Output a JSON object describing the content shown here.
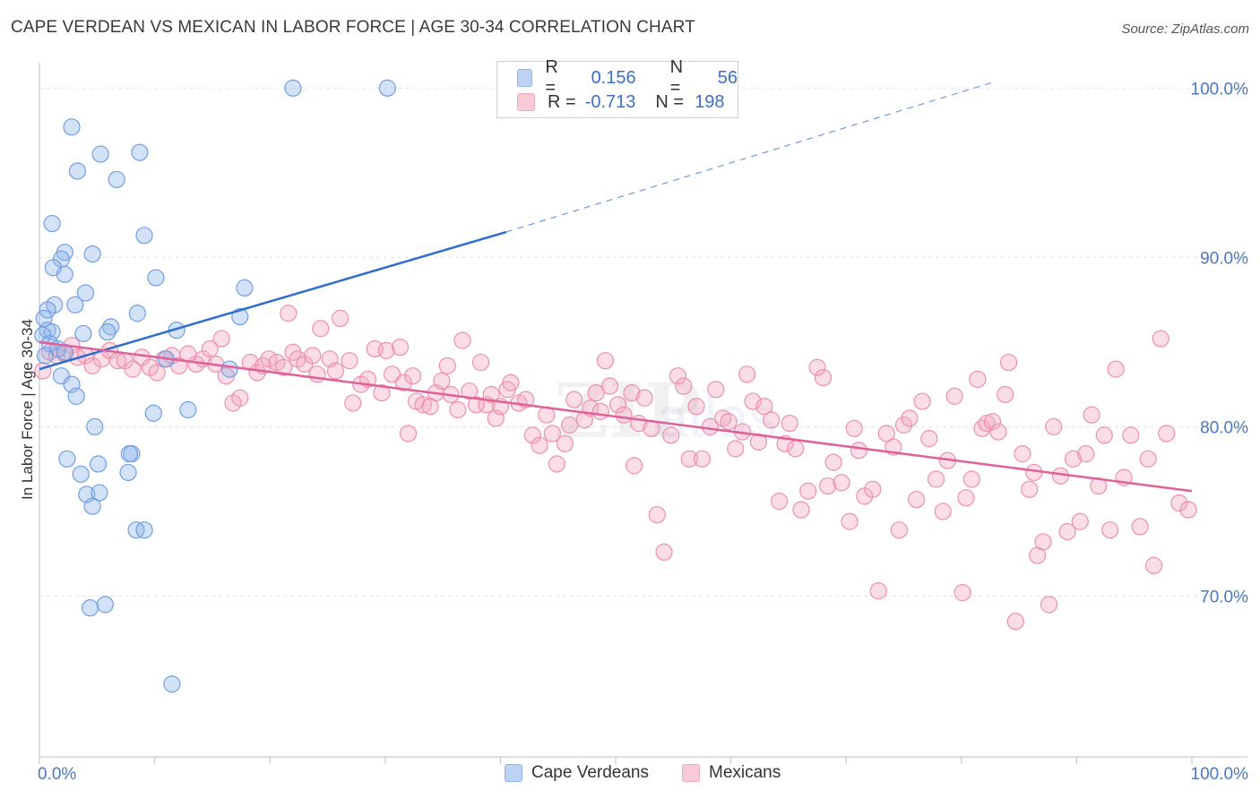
{
  "title": "CAPE VERDEAN VS MEXICAN IN LABOR FORCE | AGE 30-34 CORRELATION CHART",
  "source": "Source: ZipAtlas.com",
  "legend": {
    "rows": [
      {
        "r_label": "R =",
        "r_value": "0.156",
        "n_label": "N =",
        "n_value": "56",
        "color": "#8fb4ea"
      },
      {
        "r_label": "R =",
        "r_value": "-0.713",
        "n_label": "N =",
        "n_value": "198",
        "color": "#f3a6be"
      }
    ]
  },
  "bottom_legend": [
    {
      "label": "Cape Verdeans",
      "color": "#8fb4ea"
    },
    {
      "label": "Mexicans",
      "color": "#f3a6be"
    }
  ],
  "chart_data": {
    "type": "scatter",
    "ylabel": "In Labor Force | Age 30-34",
    "x_tick_labels": [
      "0.0%",
      "100.0%"
    ],
    "y_tick_labels": [
      "100.0%",
      "90.0%",
      "80.0%",
      "70.0%"
    ],
    "y_tick_values": [
      100,
      90,
      80,
      70
    ],
    "xlim": [
      0,
      100
    ],
    "ylim": [
      60.5,
      101.5
    ],
    "grid": true,
    "series": [
      {
        "name": "Cape Verdeans",
        "color": "#8fb4ea",
        "stroke": "#6f9fe3",
        "trend": {
          "x0": 0,
          "y0": 83.4,
          "x1": 40.5,
          "y1": 91.5,
          "dash_x1": 83,
          "dash_y1": 100.4,
          "color": "#2f6fcc"
        },
        "points": [
          [
            22,
            100
          ],
          [
            30.2,
            100
          ],
          [
            2.8,
            97.7
          ],
          [
            5.3,
            96.1
          ],
          [
            8.7,
            96.2
          ],
          [
            6.7,
            94.6
          ],
          [
            3.3,
            95.1
          ],
          [
            1.1,
            92
          ],
          [
            9.1,
            91.3
          ],
          [
            2.2,
            90.3
          ],
          [
            4.6,
            90.2
          ],
          [
            1.9,
            89.9
          ],
          [
            1.2,
            89.4
          ],
          [
            2.2,
            89
          ],
          [
            10.1,
            88.8
          ],
          [
            17.8,
            88.2
          ],
          [
            4,
            87.9
          ],
          [
            1.3,
            87.2
          ],
          [
            3.1,
            87.2
          ],
          [
            0.7,
            86.9
          ],
          [
            8.5,
            86.7
          ],
          [
            17.4,
            86.5
          ],
          [
            0.4,
            86.4
          ],
          [
            6.2,
            85.9
          ],
          [
            11.9,
            85.7
          ],
          [
            0.7,
            85.7
          ],
          [
            1.1,
            85.6
          ],
          [
            3.8,
            85.5
          ],
          [
            5.9,
            85.6
          ],
          [
            0.3,
            85.4
          ],
          [
            0.9,
            84.9
          ],
          [
            1.6,
            84.6
          ],
          [
            2.2,
            84.4
          ],
          [
            0.5,
            84.2
          ],
          [
            11,
            84
          ],
          [
            16.5,
            83.4
          ],
          [
            1.9,
            83
          ],
          [
            2.8,
            82.5
          ],
          [
            3.2,
            81.8
          ],
          [
            12.9,
            81
          ],
          [
            9.9,
            80.8
          ],
          [
            4.8,
            80
          ],
          [
            8.0,
            78.4
          ],
          [
            7.8,
            78.4
          ],
          [
            2.4,
            78.1
          ],
          [
            5.1,
            77.8
          ],
          [
            3.6,
            77.2
          ],
          [
            7.7,
            77.3
          ],
          [
            4.1,
            76
          ],
          [
            5.2,
            76.1
          ],
          [
            4.6,
            75.3
          ],
          [
            8.4,
            73.9
          ],
          [
            9.1,
            73.9
          ],
          [
            5.7,
            69.5
          ],
          [
            4.4,
            69.3
          ],
          [
            11.5,
            64.8
          ]
        ]
      },
      {
        "name": "Mexicans",
        "color": "#f3a6be",
        "stroke": "#ec90ae",
        "trend": {
          "x0": 0,
          "y0": 85.0,
          "x1": 100,
          "y1": 76.2,
          "color": "#e0609a"
        },
        "points": [
          [
            0.3,
            83.3
          ],
          [
            0.9,
            84.4
          ],
          [
            1.5,
            84.2
          ],
          [
            2.2,
            84.3
          ],
          [
            2.8,
            84.8
          ],
          [
            3.3,
            84.1
          ],
          [
            4.0,
            84.2
          ],
          [
            4.6,
            83.6
          ],
          [
            5.4,
            84.0
          ],
          [
            6.1,
            84.5
          ],
          [
            6.8,
            83.9
          ],
          [
            7.4,
            83.9
          ],
          [
            8.1,
            83.4
          ],
          [
            8.9,
            84.1
          ],
          [
            9.6,
            83.5
          ],
          [
            10.2,
            83.2
          ],
          [
            10.8,
            84.0
          ],
          [
            11.5,
            84.2
          ],
          [
            12.1,
            83.6
          ],
          [
            12.9,
            84.3
          ],
          [
            13.6,
            83.7
          ],
          [
            14.2,
            84.0
          ],
          [
            14.8,
            84.6
          ],
          [
            15.3,
            83.7
          ],
          [
            15.8,
            85.2
          ],
          [
            16.2,
            83.0
          ],
          [
            16.8,
            81.4
          ],
          [
            17.4,
            81.7
          ],
          [
            18.3,
            83.8
          ],
          [
            18.9,
            83.2
          ],
          [
            19.4,
            83.6
          ],
          [
            19.9,
            84.0
          ],
          [
            20.6,
            83.8
          ],
          [
            21.2,
            83.5
          ],
          [
            21.6,
            86.7
          ],
          [
            22.0,
            84.4
          ],
          [
            22.4,
            84.0
          ],
          [
            23.0,
            83.7
          ],
          [
            23.7,
            84.2
          ],
          [
            24.1,
            83.1
          ],
          [
            24.4,
            85.8
          ],
          [
            25.2,
            84.0
          ],
          [
            25.7,
            83.3
          ],
          [
            26.1,
            86.4
          ],
          [
            26.9,
            83.9
          ],
          [
            27.2,
            81.4
          ],
          [
            27.9,
            82.5
          ],
          [
            28.5,
            82.8
          ],
          [
            29.1,
            84.6
          ],
          [
            29.7,
            82.0
          ],
          [
            30.1,
            84.5
          ],
          [
            30.6,
            83.1
          ],
          [
            31.3,
            84.7
          ],
          [
            31.6,
            82.6
          ],
          [
            32.0,
            79.6
          ],
          [
            32.4,
            83.0
          ],
          [
            32.7,
            81.5
          ],
          [
            33.3,
            81.3
          ],
          [
            33.9,
            81.2
          ],
          [
            34.4,
            82.0
          ],
          [
            34.9,
            82.7
          ],
          [
            35.4,
            83.6
          ],
          [
            35.7,
            81.9
          ],
          [
            36.3,
            81.0
          ],
          [
            36.7,
            85.1
          ],
          [
            37.3,
            82.1
          ],
          [
            37.9,
            81.3
          ],
          [
            38.3,
            83.8
          ],
          [
            38.8,
            81.3
          ],
          [
            39.2,
            81.9
          ],
          [
            39.6,
            80.5
          ],
          [
            40.0,
            81.2
          ],
          [
            40.6,
            82.2
          ],
          [
            40.9,
            82.6
          ],
          [
            41.6,
            81.4
          ],
          [
            42.2,
            81.6
          ],
          [
            42.8,
            79.5
          ],
          [
            43.4,
            78.9
          ],
          [
            44.0,
            80.7
          ],
          [
            44.5,
            79.6
          ],
          [
            44.9,
            77.8
          ],
          [
            45.6,
            79.0
          ],
          [
            46.0,
            80.1
          ],
          [
            46.4,
            81.6
          ],
          [
            47.3,
            80.4
          ],
          [
            47.8,
            81.1
          ],
          [
            48.3,
            82.0
          ],
          [
            48.7,
            80.9
          ],
          [
            49.1,
            83.9
          ],
          [
            49.5,
            82.4
          ],
          [
            50.2,
            81.3
          ],
          [
            50.7,
            80.7
          ],
          [
            51.4,
            82.0
          ],
          [
            51.6,
            77.7
          ],
          [
            52.0,
            80.2
          ],
          [
            52.5,
            81.7
          ],
          [
            53.1,
            79.9
          ],
          [
            53.6,
            74.8
          ],
          [
            54.2,
            72.6
          ],
          [
            54.8,
            79.5
          ],
          [
            55.4,
            83.0
          ],
          [
            55.9,
            82.4
          ],
          [
            56.4,
            78.1
          ],
          [
            57.0,
            81.2
          ],
          [
            57.5,
            78.1
          ],
          [
            58.2,
            80.0
          ],
          [
            58.7,
            82.2
          ],
          [
            59.3,
            80.5
          ],
          [
            59.8,
            80.3
          ],
          [
            60.4,
            78.7
          ],
          [
            61.0,
            79.7
          ],
          [
            61.4,
            83.1
          ],
          [
            61.9,
            81.5
          ],
          [
            62.4,
            79.1
          ],
          [
            62.9,
            81.2
          ],
          [
            63.5,
            80.4
          ],
          [
            64.2,
            75.6
          ],
          [
            64.7,
            79.0
          ],
          [
            65.1,
            80.2
          ],
          [
            65.6,
            78.7
          ],
          [
            66.1,
            75.1
          ],
          [
            66.7,
            76.2
          ],
          [
            67.5,
            83.5
          ],
          [
            68.0,
            82.9
          ],
          [
            68.4,
            76.5
          ],
          [
            68.9,
            77.9
          ],
          [
            69.6,
            76.7
          ],
          [
            70.3,
            74.4
          ],
          [
            70.7,
            79.9
          ],
          [
            71.1,
            78.6
          ],
          [
            71.6,
            75.9
          ],
          [
            72.3,
            76.3
          ],
          [
            72.8,
            70.3
          ],
          [
            73.5,
            79.6
          ],
          [
            74.1,
            78.8
          ],
          [
            74.6,
            73.9
          ],
          [
            75.0,
            80.1
          ],
          [
            75.5,
            80.5
          ],
          [
            76.1,
            75.7
          ],
          [
            76.6,
            81.5
          ],
          [
            77.2,
            79.3
          ],
          [
            77.8,
            76.9
          ],
          [
            78.4,
            75.0
          ],
          [
            78.8,
            78.0
          ],
          [
            79.4,
            81.8
          ],
          [
            80.1,
            70.2
          ],
          [
            80.4,
            75.8
          ],
          [
            80.9,
            76.9
          ],
          [
            81.4,
            82.8
          ],
          [
            81.8,
            79.9
          ],
          [
            82.2,
            80.2
          ],
          [
            82.7,
            80.3
          ],
          [
            83.2,
            79.7
          ],
          [
            83.8,
            81.9
          ],
          [
            84.1,
            83.8
          ],
          [
            84.7,
            68.5
          ],
          [
            85.3,
            78.4
          ],
          [
            85.9,
            76.3
          ],
          [
            86.3,
            77.3
          ],
          [
            86.6,
            72.4
          ],
          [
            87.1,
            73.2
          ],
          [
            87.6,
            69.5
          ],
          [
            88.0,
            80.0
          ],
          [
            88.6,
            77.1
          ],
          [
            89.2,
            73.8
          ],
          [
            89.7,
            78.1
          ],
          [
            90.3,
            74.4
          ],
          [
            90.8,
            78.4
          ],
          [
            91.3,
            80.7
          ],
          [
            91.9,
            76.5
          ],
          [
            92.4,
            79.5
          ],
          [
            92.9,
            73.9
          ],
          [
            93.4,
            83.4
          ],
          [
            94.1,
            77.0
          ],
          [
            94.7,
            79.5
          ],
          [
            95.5,
            74.1
          ],
          [
            96.2,
            78.1
          ],
          [
            96.7,
            71.8
          ],
          [
            97.3,
            85.2
          ],
          [
            97.8,
            79.6
          ],
          [
            98.9,
            75.5
          ],
          [
            99.7,
            75.1
          ]
        ]
      }
    ]
  }
}
